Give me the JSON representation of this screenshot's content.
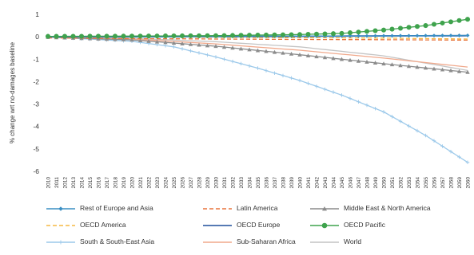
{
  "chart_data": {
    "type": "line",
    "ylabel": "% change wrt no-damages baseline",
    "xlabel": "",
    "ylim": [
      -6,
      1
    ],
    "yticks": [
      1,
      0,
      -1,
      -2,
      -3,
      -4,
      -5,
      -6
    ],
    "grid": false,
    "legend_position": "bottom",
    "x": [
      2010,
      2011,
      2012,
      2013,
      2014,
      2015,
      2016,
      2017,
      2018,
      2019,
      2020,
      2021,
      2022,
      2023,
      2024,
      2025,
      2026,
      2027,
      2028,
      2029,
      2030,
      2031,
      2032,
      2033,
      2034,
      2035,
      2036,
      2037,
      2038,
      2039,
      2040,
      2041,
      2042,
      2043,
      2044,
      2045,
      2046,
      2047,
      2048,
      2049,
      2050,
      2051,
      2052,
      2053,
      2054,
      2055,
      2056,
      2057,
      2058,
      2059,
      2060
    ],
    "series": [
      {
        "name": "Rest of Europe and Asia",
        "color": "#3a8fc4",
        "dash": "solid",
        "marker": "diamond",
        "anchors": [
          [
            2010,
            0
          ],
          [
            2020,
            0.01
          ],
          [
            2030,
            0.02
          ],
          [
            2040,
            0.03
          ],
          [
            2050,
            0.04
          ],
          [
            2060,
            0.06
          ]
        ]
      },
      {
        "name": "Latin America",
        "color": "#e8743b",
        "dash": "dash",
        "marker": "none",
        "anchors": [
          [
            2010,
            -0.05
          ],
          [
            2020,
            -0.08
          ],
          [
            2030,
            -0.1
          ],
          [
            2040,
            -0.12
          ],
          [
            2050,
            -0.13
          ],
          [
            2060,
            -0.15
          ]
        ]
      },
      {
        "name": "Middle East & North America",
        "color": "#8c8c8c",
        "dash": "solid",
        "marker": "triangle",
        "anchors": [
          [
            2010,
            -0.02
          ],
          [
            2020,
            -0.14
          ],
          [
            2030,
            -0.42
          ],
          [
            2040,
            -0.8
          ],
          [
            2050,
            -1.2
          ],
          [
            2060,
            -1.58
          ]
        ]
      },
      {
        "name": "OECD America",
        "color": "#f5b942",
        "dash": "dash",
        "marker": "none",
        "anchors": [
          [
            2010,
            0
          ],
          [
            2020,
            0
          ],
          [
            2030,
            -0.02
          ],
          [
            2040,
            -0.04
          ],
          [
            2050,
            -0.06
          ],
          [
            2060,
            -0.1
          ]
        ]
      },
      {
        "name": "OECD Europe",
        "color": "#1f4e9c",
        "dash": "solid",
        "marker": "none",
        "anchors": [
          [
            2010,
            0
          ],
          [
            2020,
            0
          ],
          [
            2030,
            0.01
          ],
          [
            2040,
            0.02
          ],
          [
            2050,
            0.04
          ],
          [
            2060,
            0.05
          ]
        ]
      },
      {
        "name": "OECD Pacific",
        "color": "#3fa34d",
        "dash": "solid",
        "marker": "circle",
        "anchors": [
          [
            2010,
            0.02
          ],
          [
            2020,
            0.03
          ],
          [
            2030,
            0.05
          ],
          [
            2040,
            0.1
          ],
          [
            2045,
            0.15
          ],
          [
            2050,
            0.3
          ],
          [
            2055,
            0.5
          ],
          [
            2060,
            0.78
          ]
        ]
      },
      {
        "name": "South & South-East Asia",
        "color": "#9cc9ea",
        "dash": "solid",
        "marker": "plus",
        "anchors": [
          [
            2010,
            -0.01
          ],
          [
            2020,
            -0.2
          ],
          [
            2025,
            -0.45
          ],
          [
            2030,
            -0.9
          ],
          [
            2035,
            -1.4
          ],
          [
            2040,
            -1.95
          ],
          [
            2045,
            -2.6
          ],
          [
            2050,
            -3.35
          ],
          [
            2055,
            -4.4
          ],
          [
            2060,
            -5.6
          ]
        ]
      },
      {
        "name": "Sub-Saharan Africa",
        "color": "#f0a98c",
        "dash": "solid",
        "marker": "none",
        "anchors": [
          [
            2010,
            -0.02
          ],
          [
            2020,
            -0.1
          ],
          [
            2030,
            -0.32
          ],
          [
            2040,
            -0.6
          ],
          [
            2050,
            -0.95
          ],
          [
            2060,
            -1.35
          ]
        ]
      },
      {
        "name": "World",
        "color": "#c4c4c4",
        "dash": "solid",
        "marker": "none",
        "anchors": [
          [
            2010,
            -0.01
          ],
          [
            2020,
            -0.07
          ],
          [
            2030,
            -0.22
          ],
          [
            2040,
            -0.45
          ],
          [
            2050,
            -0.85
          ],
          [
            2060,
            -1.5
          ]
        ]
      }
    ]
  }
}
